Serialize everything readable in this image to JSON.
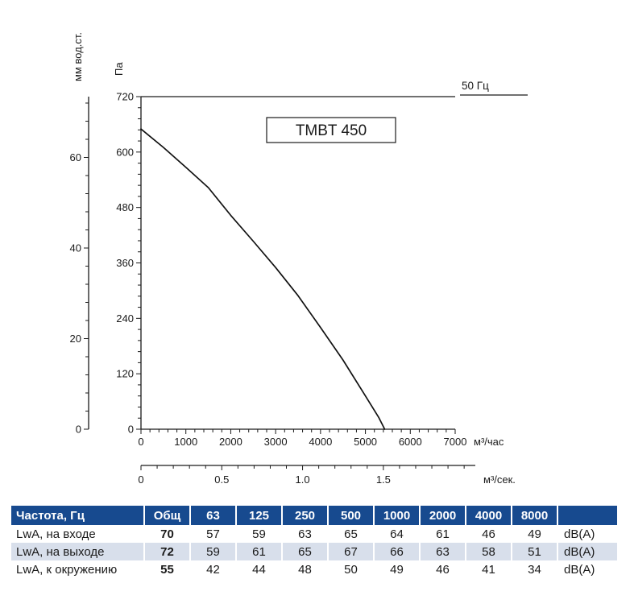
{
  "chart_data": {
    "type": "line",
    "title": "TMBT 450",
    "frequency_label": "50 Гц",
    "x_axis": {
      "label": "м³/час",
      "min": 0,
      "max": 7000,
      "ticks": [
        0,
        1000,
        2000,
        3000,
        4000,
        5000,
        6000,
        7000
      ],
      "minor_step": 200
    },
    "x_axis_secondary": {
      "label": "м³/сек.",
      "scale": 3600,
      "ticks": [
        {
          "v": 0,
          "label": "0"
        },
        {
          "v": 0.5,
          "label": "0.5"
        },
        {
          "v": 1,
          "label": "1.0"
        },
        {
          "v": 1.5,
          "label": "1.5"
        }
      ],
      "minor_step": 0.1,
      "minor_max": 2.0
    },
    "y_axis": {
      "label": "Па",
      "min": 0,
      "max": 720,
      "ticks": [
        0,
        120,
        240,
        360,
        480,
        600,
        720
      ],
      "minor_per_major": 5
    },
    "y_axis_secondary": {
      "label": "мм вод.ст.",
      "scale": 9.80665,
      "ticks": [
        0,
        20,
        40,
        60
      ],
      "tick_step": 20,
      "minor_step": 4
    },
    "curve": {
      "points": [
        [
          0,
          650
        ],
        [
          500,
          610
        ],
        [
          1000,
          567
        ],
        [
          1500,
          523
        ],
        [
          2000,
          463
        ],
        [
          2500,
          407
        ],
        [
          3000,
          350
        ],
        [
          3500,
          289
        ],
        [
          4000,
          220
        ],
        [
          4500,
          150
        ],
        [
          5000,
          72
        ],
        [
          5300,
          25
        ],
        [
          5430,
          0
        ]
      ]
    }
  },
  "table": {
    "header": [
      "Частота, Гц",
      "Общ",
      "63",
      "125",
      "250",
      "500",
      "1000",
      "2000",
      "4000",
      "8000",
      ""
    ],
    "rows": [
      {
        "label": "LwA, на входе",
        "total": "70",
        "values": [
          "57",
          "59",
          "63",
          "65",
          "64",
          "61",
          "46",
          "49"
        ],
        "unit": "dB(A)"
      },
      {
        "label": "LwA, на выходе",
        "total": "72",
        "values": [
          "59",
          "61",
          "65",
          "67",
          "66",
          "63",
          "58",
          "51"
        ],
        "unit": "dB(A)"
      },
      {
        "label": "LwA, к окружению",
        "total": "55",
        "values": [
          "42",
          "44",
          "48",
          "50",
          "49",
          "46",
          "41",
          "34"
        ],
        "unit": "dB(A)"
      }
    ]
  }
}
